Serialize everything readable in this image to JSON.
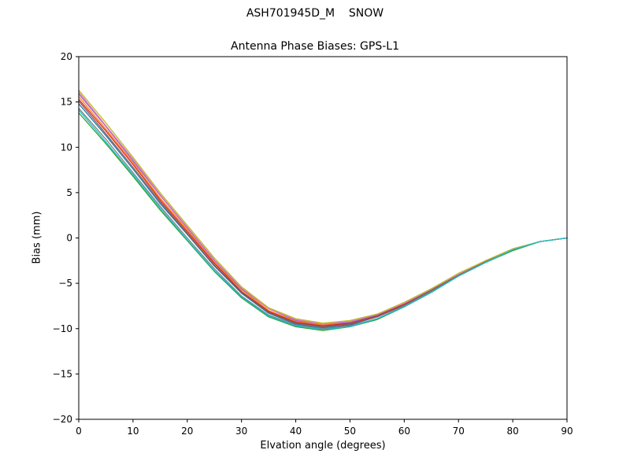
{
  "figure": {
    "title": "ASH701945D_M    SNOW",
    "subtitle": "Antenna Phase Biases: GPS-L1",
    "xlabel": "Elvation angle (degrees)",
    "ylabel": "Bias (mm)"
  },
  "chart_data": {
    "type": "line",
    "title": "ASH701945D_M    SNOW",
    "subtitle": "Antenna Phase Biases: GPS-L1",
    "xlabel": "Elvation angle (degrees)",
    "ylabel": "Bias (mm)",
    "xlim": [
      0,
      90
    ],
    "ylim": [
      -20,
      20
    ],
    "xticks": [
      0,
      10,
      20,
      30,
      40,
      50,
      60,
      70,
      80,
      90
    ],
    "yticks": [
      -20,
      -15,
      -10,
      -5,
      0,
      5,
      10,
      15,
      20
    ],
    "grid": false,
    "legend": "none",
    "frame_color": "#000000",
    "x": [
      0,
      5,
      10,
      15,
      20,
      25,
      30,
      35,
      40,
      45,
      50,
      55,
      60,
      65,
      70,
      75,
      80,
      85,
      90
    ],
    "series": [
      {
        "name": "line-1",
        "color": "#1f77b4",
        "values": [
          14.8,
          11.3,
          7.6,
          3.8,
          0.4,
          -3.1,
          -6.1,
          -8.3,
          -9.5,
          -9.9,
          -9.6,
          -8.7,
          -7.4,
          -5.8,
          -4.1,
          -2.6,
          -1.3,
          -0.4,
          0.0
        ]
      },
      {
        "name": "line-2",
        "color": "#ff7f0e",
        "values": [
          15.6,
          12.0,
          8.3,
          4.4,
          0.9,
          -2.7,
          -5.7,
          -8.0,
          -9.2,
          -9.6,
          -9.4,
          -8.6,
          -7.3,
          -5.7,
          -4.0,
          -2.6,
          -1.3,
          -0.4,
          0.0
        ]
      },
      {
        "name": "line-3",
        "color": "#2ca02c",
        "values": [
          13.8,
          10.4,
          6.8,
          3.1,
          -0.3,
          -3.7,
          -6.6,
          -8.7,
          -9.8,
          -10.2,
          -9.8,
          -9.0,
          -7.6,
          -6.0,
          -4.2,
          -2.7,
          -1.4,
          -0.4,
          0.0
        ]
      },
      {
        "name": "line-4",
        "color": "#d62728",
        "values": [
          15.3,
          11.8,
          8.1,
          4.2,
          0.7,
          -2.8,
          -5.9,
          -8.1,
          -9.3,
          -9.7,
          -9.4,
          -8.6,
          -7.3,
          -5.8,
          -4.1,
          -2.6,
          -1.3,
          -0.4,
          0.0
        ]
      },
      {
        "name": "line-5",
        "color": "#9467bd",
        "values": [
          15.9,
          12.3,
          8.5,
          4.7,
          1.1,
          -2.5,
          -5.6,
          -7.8,
          -9.1,
          -9.5,
          -9.3,
          -8.5,
          -7.2,
          -5.7,
          -4.0,
          -2.5,
          -1.3,
          -0.4,
          0.0
        ]
      },
      {
        "name": "line-6",
        "color": "#8c564b",
        "values": [
          15.1,
          11.5,
          7.8,
          4.0,
          0.5,
          -3.0,
          -6.0,
          -8.2,
          -9.4,
          -9.8,
          -9.5,
          -8.7,
          -7.4,
          -5.8,
          -4.1,
          -2.6,
          -1.3,
          -0.4,
          0.0
        ]
      },
      {
        "name": "line-7",
        "color": "#e377c2",
        "values": [
          16.1,
          12.4,
          8.7,
          4.8,
          1.2,
          -2.4,
          -5.5,
          -7.8,
          -9.0,
          -9.5,
          -9.2,
          -8.4,
          -7.2,
          -5.6,
          -4.0,
          -2.5,
          -1.2,
          -0.4,
          0.0
        ]
      },
      {
        "name": "line-8",
        "color": "#7f7f7f",
        "values": [
          14.3,
          10.9,
          7.2,
          3.5,
          0.0,
          -3.4,
          -6.4,
          -8.5,
          -9.6,
          -10.0,
          -9.7,
          -8.9,
          -7.5,
          -5.9,
          -4.2,
          -2.7,
          -1.3,
          -0.4,
          0.0
        ]
      },
      {
        "name": "line-9",
        "color": "#bcbd22",
        "values": [
          16.3,
          12.7,
          8.9,
          5.0,
          1.4,
          -2.2,
          -5.4,
          -7.7,
          -8.9,
          -9.4,
          -9.1,
          -8.4,
          -7.1,
          -5.6,
          -3.9,
          -2.5,
          -1.2,
          -0.4,
          0.0
        ]
      },
      {
        "name": "line-10",
        "color": "#17becf",
        "values": [
          14.1,
          10.6,
          7.0,
          3.3,
          -0.2,
          -3.6,
          -6.5,
          -8.6,
          -9.7,
          -10.1,
          -9.8,
          -8.9,
          -7.6,
          -6.0,
          -4.2,
          -2.7,
          -1.3,
          -0.4,
          0.0
        ]
      }
    ]
  }
}
